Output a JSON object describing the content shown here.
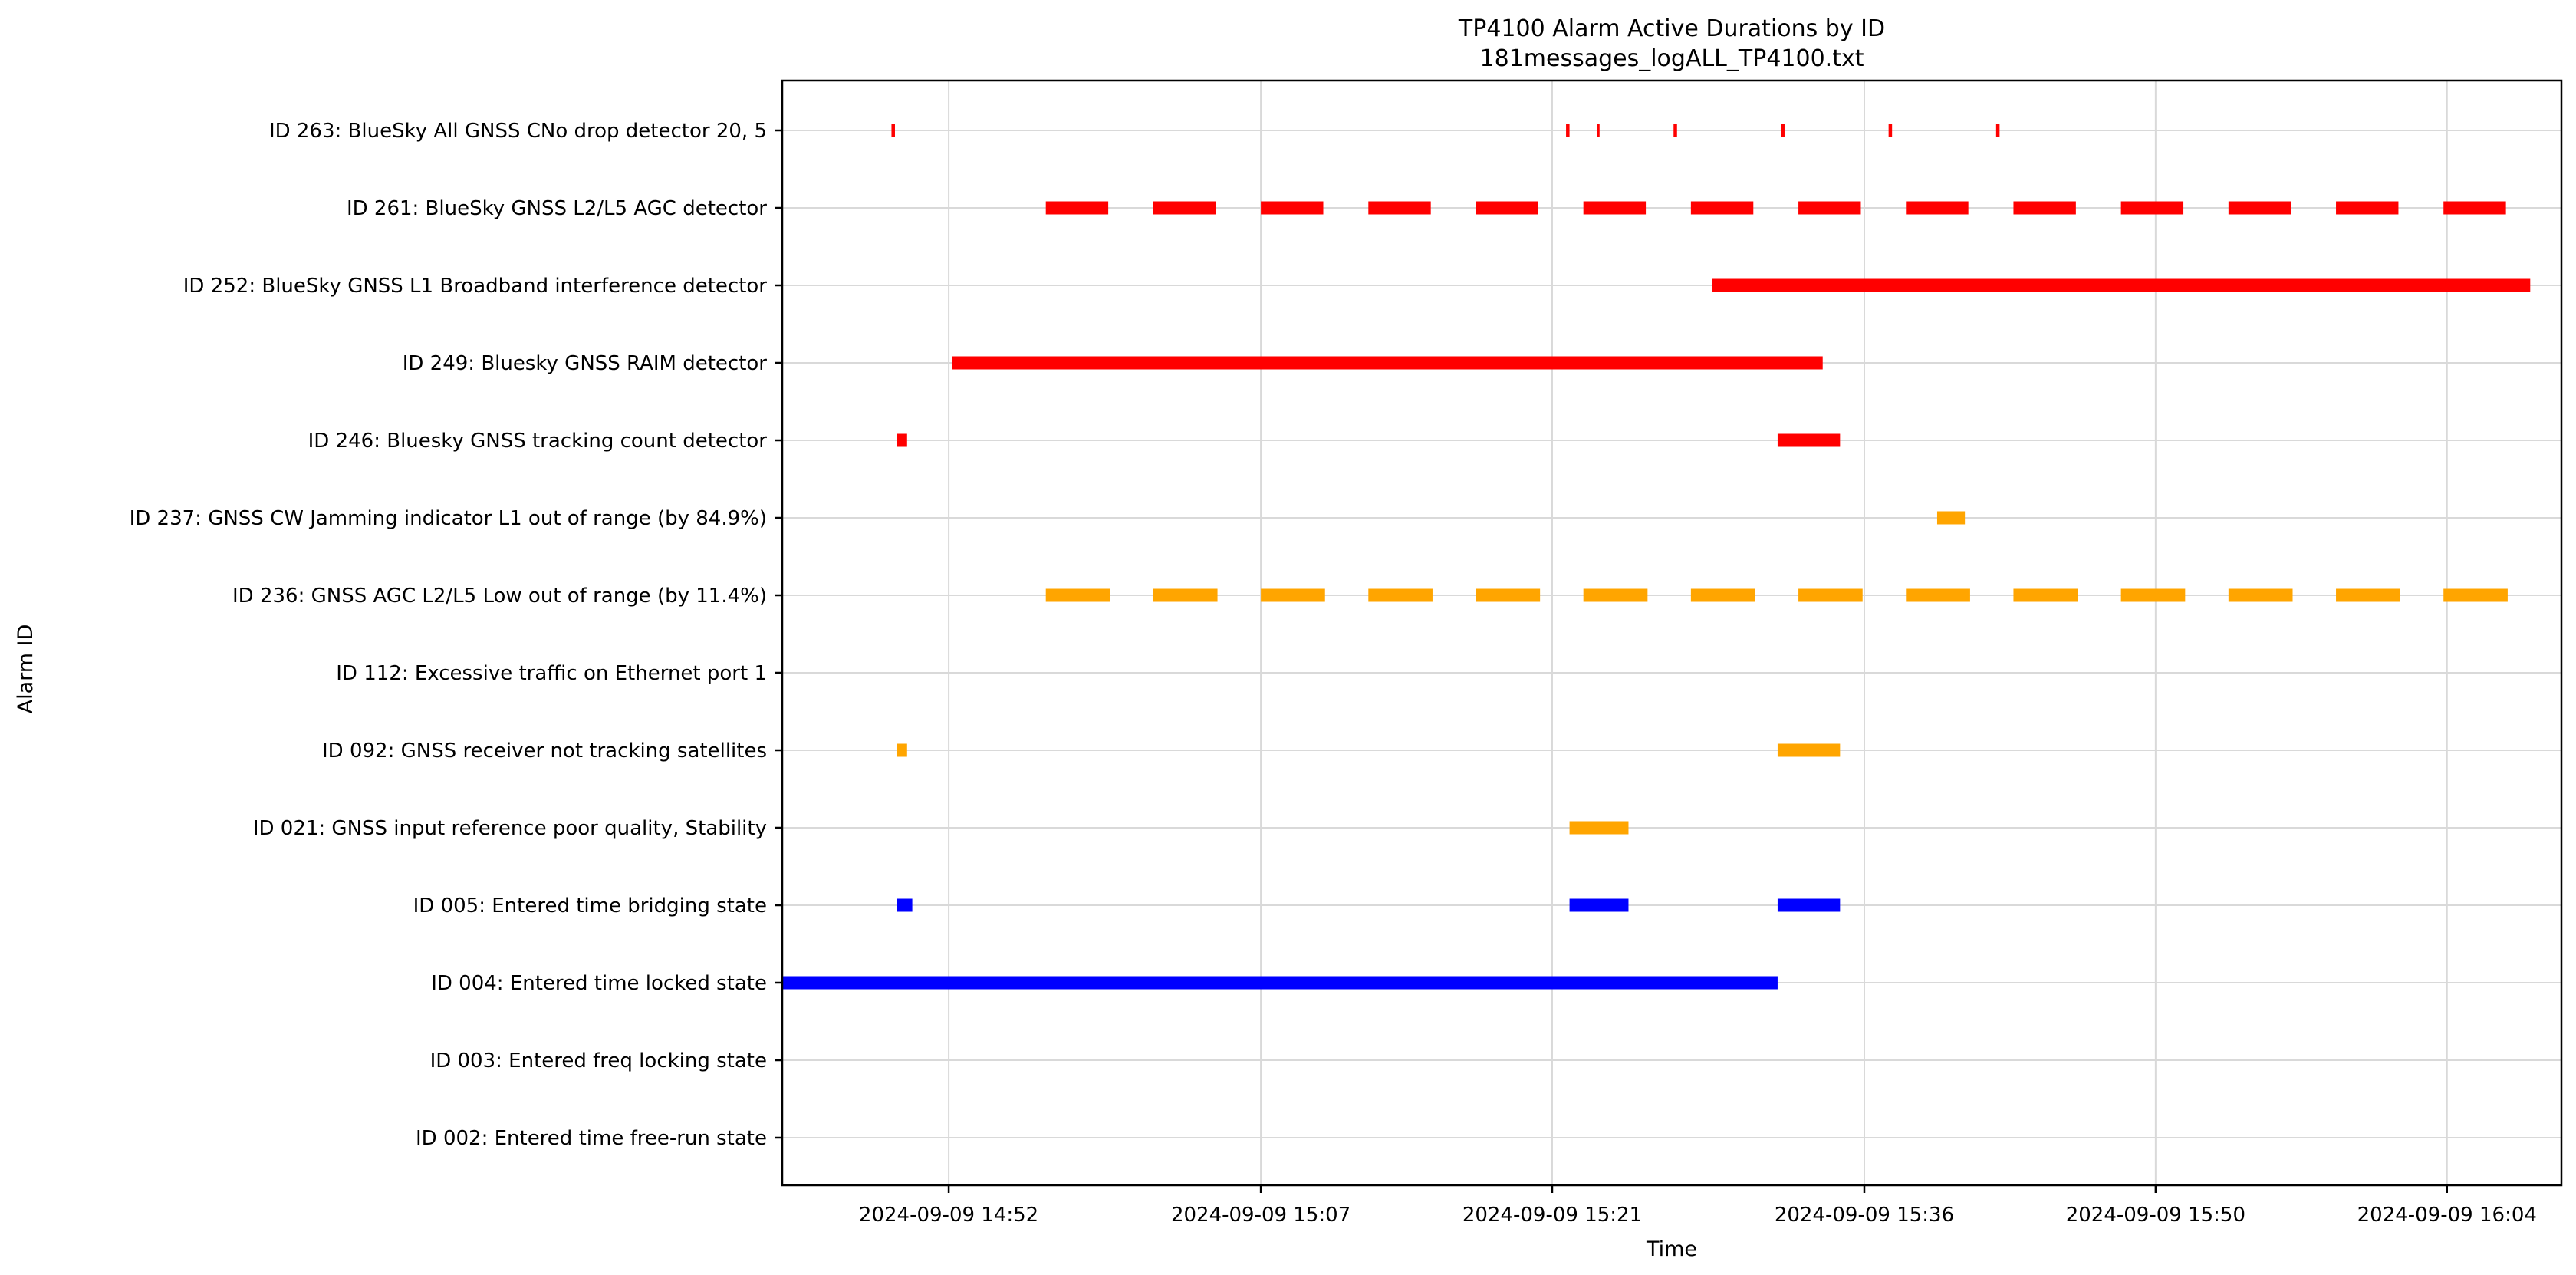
{
  "chart_data": {
    "type": "timeline",
    "title": "TP4100 Alarm Active Durations by ID",
    "subtitle": "181messages_logALL_TP4100.txt",
    "xlabel": "Time",
    "ylabel": "Alarm ID",
    "grid": true,
    "x_range": [
      "2024-09-09 14:44:00",
      "2024-09-09 16:09:30"
    ],
    "x_ticks": [
      "2024-09-09 14:52",
      "2024-09-09 15:07",
      "2024-09-09 15:21",
      "2024-09-09 15:36",
      "2024-09-09 15:50",
      "2024-09-09 16:04"
    ],
    "colors": {
      "red": "#ff0000",
      "orange": "#ffa500",
      "blue": "#0000ff"
    },
    "categories": [
      "ID 263: BlueSky All GNSS CNo drop detector 20, 5",
      "ID 261: BlueSky GNSS L2/L5 AGC detector",
      "ID 252: BlueSky GNSS L1 Broadband interference detector",
      "ID 249: Bluesky GNSS RAIM detector",
      "ID 246: Bluesky GNSS tracking count detector",
      "ID 237: GNSS CW Jamming indicator L1 out of range (by 84.9%)",
      "ID 236: GNSS AGC L2/L5 Low out of range (by 11.4%)",
      "ID 112: Excessive traffic on Ethernet port 1",
      "ID 092: GNSS receiver not tracking satellites",
      "ID 021: GNSS input reference poor quality, Stability",
      "ID 005: Entered time bridging state",
      "ID 004: Entered time locked state",
      "ID 003: Entered freq locking state",
      "ID 002: Entered time free-run state"
    ],
    "series": [
      {
        "category": "ID 263: BlueSky All GNSS CNo drop detector 20, 5",
        "color": "#ff0000",
        "intervals": [
          [
            "2024-09-09 14:49:15",
            "2024-09-09 14:49:25"
          ],
          [
            "2024-09-09 15:21:40",
            "2024-09-09 15:21:50"
          ],
          [
            "2024-09-09 15:23:10",
            "2024-09-09 15:23:15"
          ],
          [
            "2024-09-09 15:26:50",
            "2024-09-09 15:27:00"
          ],
          [
            "2024-09-09 15:32:00",
            "2024-09-09 15:32:10"
          ],
          [
            "2024-09-09 15:37:10",
            "2024-09-09 15:37:20"
          ],
          [
            "2024-09-09 15:42:20",
            "2024-09-09 15:42:30"
          ]
        ]
      },
      {
        "category": "ID 261: BlueSky GNSS L2/L5 AGC detector",
        "color": "#ff0000",
        "intervals": [
          [
            "2024-09-09 14:56:40",
            "2024-09-09 14:59:40"
          ],
          [
            "2024-09-09 15:01:50",
            "2024-09-09 15:04:50"
          ],
          [
            "2024-09-09 15:07:00",
            "2024-09-09 15:10:00"
          ],
          [
            "2024-09-09 15:12:10",
            "2024-09-09 15:15:10"
          ],
          [
            "2024-09-09 15:17:20",
            "2024-09-09 15:20:20"
          ],
          [
            "2024-09-09 15:22:30",
            "2024-09-09 15:25:30"
          ],
          [
            "2024-09-09 15:27:40",
            "2024-09-09 15:30:40"
          ],
          [
            "2024-09-09 15:32:50",
            "2024-09-09 15:35:50"
          ],
          [
            "2024-09-09 15:38:00",
            "2024-09-09 15:41:00"
          ],
          [
            "2024-09-09 15:43:10",
            "2024-09-09 15:46:10"
          ],
          [
            "2024-09-09 15:48:20",
            "2024-09-09 15:51:20"
          ],
          [
            "2024-09-09 15:53:30",
            "2024-09-09 15:56:30"
          ],
          [
            "2024-09-09 15:58:40",
            "2024-09-09 16:01:40"
          ],
          [
            "2024-09-09 16:03:50",
            "2024-09-09 16:06:50"
          ]
        ]
      },
      {
        "category": "ID 252: BlueSky GNSS L1 Broadband interference detector",
        "color": "#ff0000",
        "intervals": [
          [
            "2024-09-09 15:28:40",
            "2024-09-09 16:08:00"
          ]
        ]
      },
      {
        "category": "ID 249: Bluesky GNSS RAIM detector",
        "color": "#ff0000",
        "intervals": [
          [
            "2024-09-09 14:52:10",
            "2024-09-09 15:34:00"
          ]
        ]
      },
      {
        "category": "ID 246: Bluesky GNSS tracking count detector",
        "color": "#ff0000",
        "intervals": [
          [
            "2024-09-09 14:49:30",
            "2024-09-09 14:50:00"
          ],
          [
            "2024-09-09 15:31:50",
            "2024-09-09 15:34:50"
          ]
        ]
      },
      {
        "category": "ID 237: GNSS CW Jamming indicator L1 out of range (by 84.9%)",
        "color": "#ffa500",
        "intervals": [
          [
            "2024-09-09 15:39:30",
            "2024-09-09 15:40:50"
          ]
        ]
      },
      {
        "category": "ID 236: GNSS AGC L2/L5 Low out of range (by 11.4%)",
        "color": "#ffa500",
        "intervals": [
          [
            "2024-09-09 14:56:40",
            "2024-09-09 14:59:45"
          ],
          [
            "2024-09-09 15:01:50",
            "2024-09-09 15:04:55"
          ],
          [
            "2024-09-09 15:07:00",
            "2024-09-09 15:10:05"
          ],
          [
            "2024-09-09 15:12:10",
            "2024-09-09 15:15:15"
          ],
          [
            "2024-09-09 15:17:20",
            "2024-09-09 15:20:25"
          ],
          [
            "2024-09-09 15:22:30",
            "2024-09-09 15:25:35"
          ],
          [
            "2024-09-09 15:27:40",
            "2024-09-09 15:30:45"
          ],
          [
            "2024-09-09 15:32:50",
            "2024-09-09 15:35:55"
          ],
          [
            "2024-09-09 15:38:00",
            "2024-09-09 15:41:05"
          ],
          [
            "2024-09-09 15:43:10",
            "2024-09-09 15:46:15"
          ],
          [
            "2024-09-09 15:48:20",
            "2024-09-09 15:51:25"
          ],
          [
            "2024-09-09 15:53:30",
            "2024-09-09 15:56:35"
          ],
          [
            "2024-09-09 15:58:40",
            "2024-09-09 16:01:45"
          ],
          [
            "2024-09-09 16:03:50",
            "2024-09-09 16:06:55"
          ]
        ]
      },
      {
        "category": "ID 112: Excessive traffic on Ethernet port 1",
        "color": "#ffa500",
        "intervals": []
      },
      {
        "category": "ID 092: GNSS receiver not tracking satellites",
        "color": "#ffa500",
        "intervals": [
          [
            "2024-09-09 14:49:30",
            "2024-09-09 14:50:00"
          ],
          [
            "2024-09-09 15:31:50",
            "2024-09-09 15:34:50"
          ]
        ]
      },
      {
        "category": "ID 021: GNSS input reference poor quality, Stability",
        "color": "#ffa500",
        "intervals": [
          [
            "2024-09-09 15:21:50",
            "2024-09-09 15:24:40"
          ]
        ]
      },
      {
        "category": "ID 005: Entered time bridging state",
        "color": "#0000ff",
        "intervals": [
          [
            "2024-09-09 14:49:30",
            "2024-09-09 14:50:15"
          ],
          [
            "2024-09-09 15:21:50",
            "2024-09-09 15:24:40"
          ],
          [
            "2024-09-09 15:31:50",
            "2024-09-09 15:34:50"
          ]
        ]
      },
      {
        "category": "ID 004: Entered time locked state",
        "color": "#0000ff",
        "intervals": [
          [
            "2024-09-09 14:44:00",
            "2024-09-09 15:31:50"
          ]
        ]
      },
      {
        "category": "ID 003: Entered freq locking state",
        "color": "#0000ff",
        "intervals": []
      },
      {
        "category": "ID 002: Entered time free-run state",
        "color": "#0000ff",
        "intervals": []
      }
    ]
  }
}
